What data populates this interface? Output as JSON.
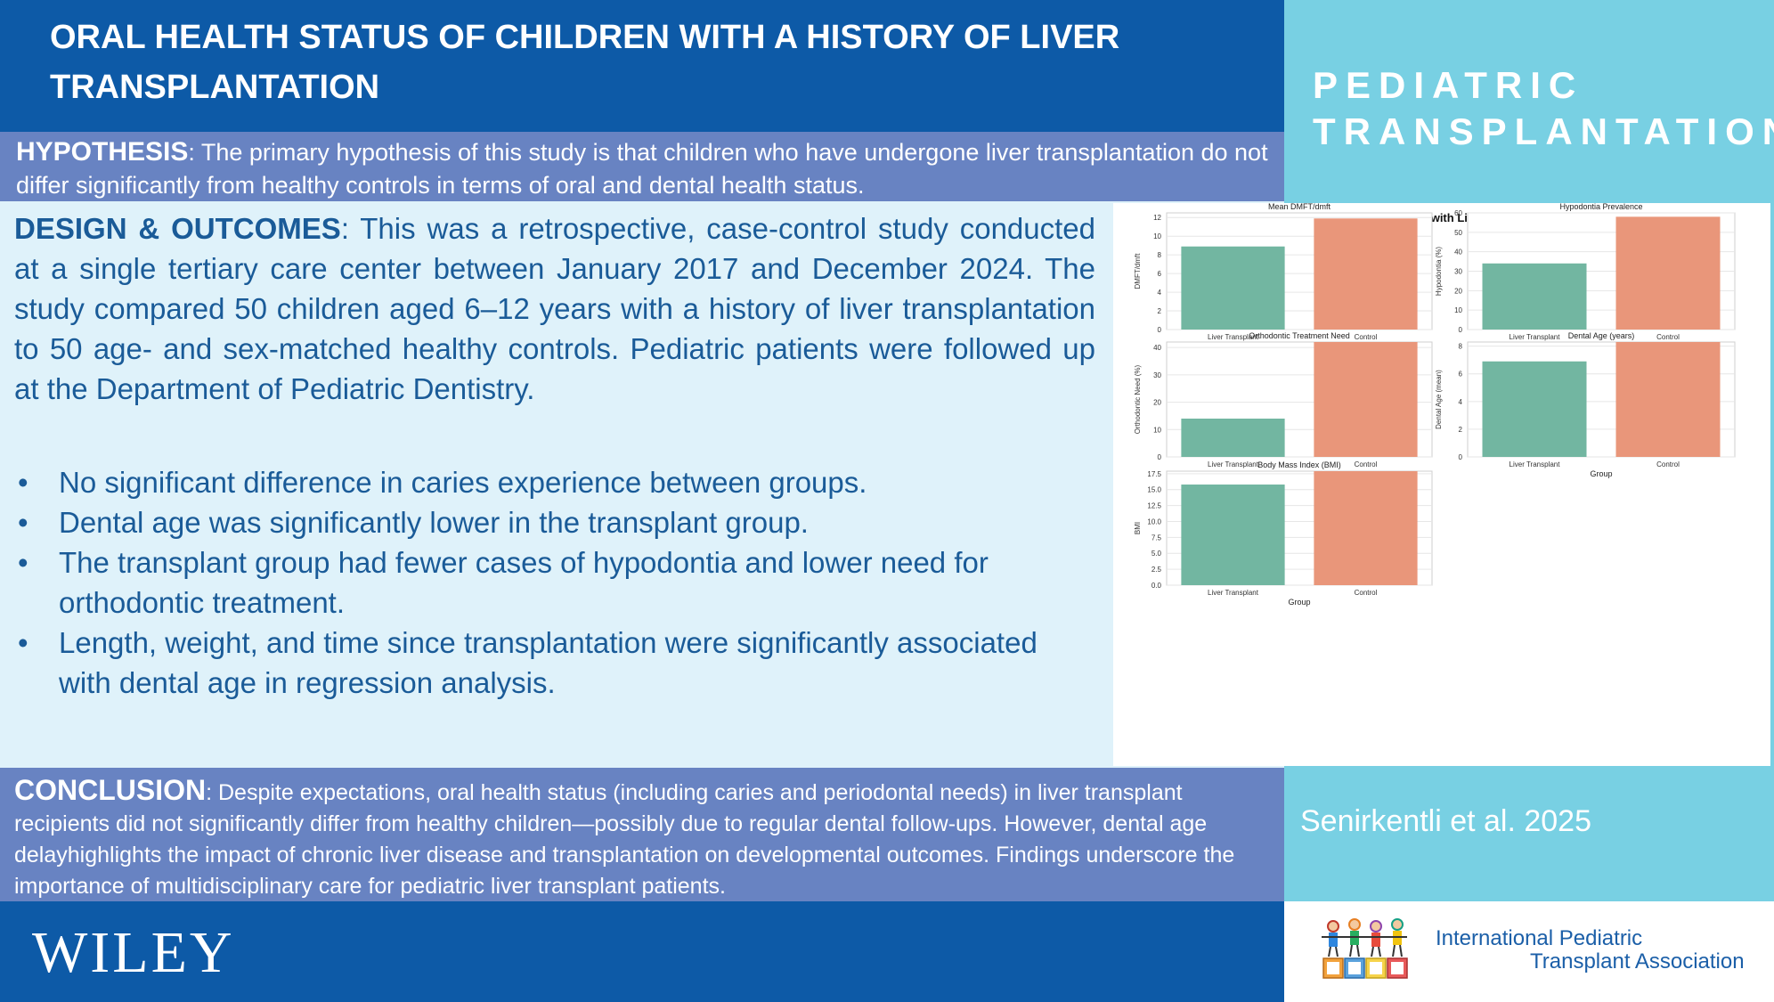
{
  "header": {
    "title": "ORAL HEALTH STATUS OF CHILDREN WITH A HISTORY OF LIVER TRANSPLANTATION",
    "journal_line1": "PEDIATRIC",
    "journal_line2": "TRANSPLANTATION"
  },
  "hypothesis": {
    "label": "HYPOTHESIS",
    "text": ": The primary hypothesis of this study is that children who have undergone liver transplantation do not differ significantly from healthy controls in terms of oral and dental health status."
  },
  "design": {
    "label": "DESIGN & OUTCOMES",
    "text": ": This was a retrospective, case-control study conducted at a single tertiary care center between January 2017 and December 2024. The study compared 50 children aged 6–12 years with a history of liver transplantation to 50 age- and sex-matched healthy controls. Pediatric patients were followed up at the Department of Pediatric Dentistry.",
    "bullets": [
      "No significant difference in caries experience between groups.",
      "Dental age was significantly lower in the transplant group.",
      "The transplant group had fewer cases of hypodontia and lower need for orthodontic treatment.",
      "Length, weight, and time since transplantation were significantly associated with dental age in regression analysis."
    ]
  },
  "conclusion": {
    "label": "CONCLUSION",
    "text": ": Despite expectations, oral health status (including caries and periodontal needs) in liver transplant recipients did not significantly differ from healthy children—possibly due to regular dental follow-ups. However, dental age delayhighlights the impact of chronic liver disease and transplantation on developmental outcomes. Findings underscore the importance of multidisciplinary care for pediatric liver transplant patients."
  },
  "footer": {
    "publisher": "WILEY",
    "citation": "Senirkentli et al. 2025",
    "org_line1": "International Pediatric",
    "org_line2": "Transplant Association"
  },
  "colors": {
    "liver_transplant": "#72b6a1",
    "control": "#e9967a",
    "title_band": "#0d5aa7",
    "accent_band": "#6883c2",
    "side_band": "#78d0e3"
  },
  "chart_data": {
    "type": "bar",
    "title": "Oral Health Outcomes in Children with Liver Transplantation vs Controls",
    "subplots": [
      {
        "title": "Mean DMFT/dmft",
        "xlabel": "Group",
        "ylabel": "DMFT/dmft",
        "categories": [
          "Liver Transplant",
          "Control"
        ],
        "values": [
          8.9,
          11.9
        ],
        "ylim": [
          0,
          12.5
        ],
        "yticks": [
          0,
          2,
          4,
          6,
          8,
          10,
          12
        ],
        "tick_labels": [
          "0",
          "2",
          "4",
          "6",
          "8",
          "10",
          "12"
        ]
      },
      {
        "title": "Hypodontia Prevalence",
        "xlabel": "Group",
        "ylabel": "Hypodontia (%)",
        "categories": [
          "Liver Transplant",
          "Control"
        ],
        "values": [
          34,
          58
        ],
        "ylim": [
          0,
          60
        ],
        "yticks": [
          0,
          10,
          20,
          30,
          40,
          50,
          60
        ],
        "tick_labels": [
          "0",
          "10",
          "20",
          "30",
          "40",
          "50",
          "60"
        ]
      },
      {
        "title": "Orthodontic Treatment Need",
        "xlabel": "Group",
        "ylabel": "Orthodontic Need (%)",
        "categories": [
          "Liver Transplant",
          "Control"
        ],
        "values": [
          14,
          42
        ],
        "ylim": [
          0,
          42
        ],
        "yticks": [
          0,
          10,
          20,
          30,
          40
        ],
        "tick_labels": [
          "0",
          "10",
          "20",
          "30",
          "40"
        ]
      },
      {
        "title": "Dental Age (years)",
        "xlabel": "Group",
        "ylabel": "Dental Age (mean)",
        "categories": [
          "Liver Transplant",
          "Control"
        ],
        "values": [
          6.9,
          8.3
        ],
        "ylim": [
          0,
          8.3
        ],
        "yticks": [
          0,
          2,
          4,
          6,
          8
        ],
        "tick_labels": [
          "0",
          "2",
          "4",
          "6",
          "8"
        ]
      },
      {
        "title": "Body Mass Index (BMI)",
        "xlabel": "Group",
        "ylabel": "BMI",
        "categories": [
          "Liver Transplant",
          "Control"
        ],
        "values": [
          15.8,
          17.9
        ],
        "ylim": [
          0,
          17.9
        ],
        "yticks": [
          0,
          2.5,
          5,
          7.5,
          10,
          12.5,
          15,
          17.5
        ],
        "tick_labels": [
          "0.0",
          "2.5",
          "5.0",
          "7.5",
          "10.0",
          "12.5",
          "15.0",
          "17.5"
        ]
      }
    ]
  }
}
